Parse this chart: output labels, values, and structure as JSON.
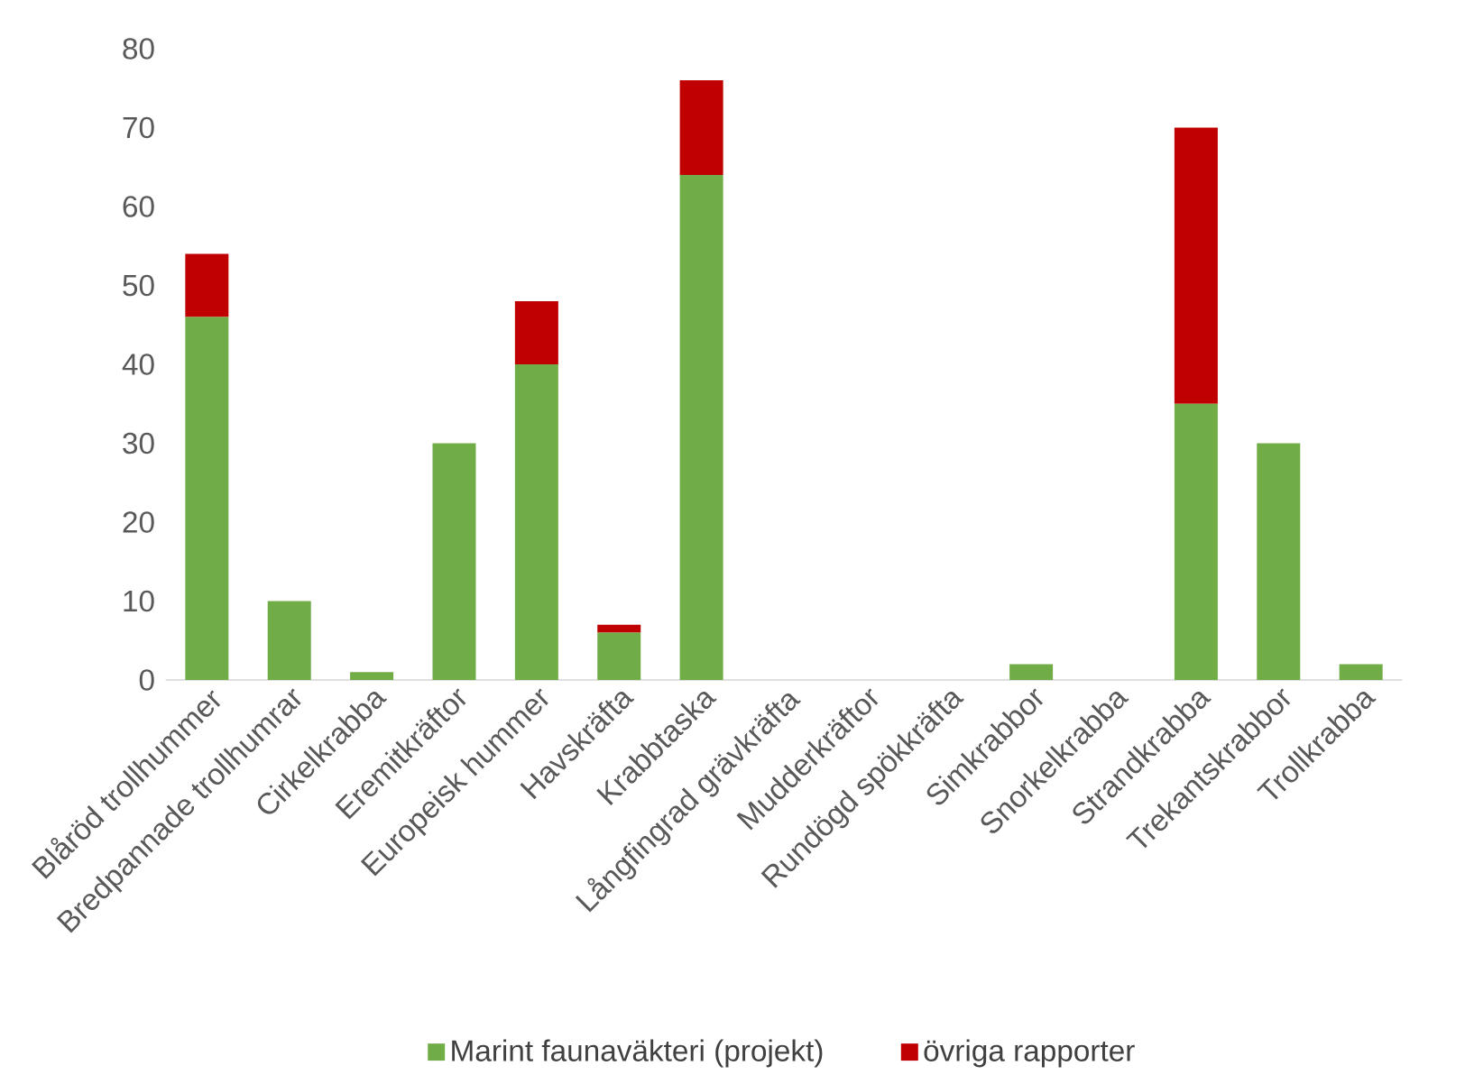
{
  "chart_data": {
    "type": "bar",
    "stacked": true,
    "legend": "bottom",
    "categories": [
      "Blåröd trollhummer",
      "Bredpannade trollhumrar",
      "Cirkelkrabba",
      "Eremitkräftor",
      "Europeisk hummer",
      "Havskräfta",
      "Krabbtaska",
      "Långfingrad grävkräfta",
      "Mudderkräftor",
      "Rundögd spökkräfta",
      "Simkrabbor",
      "Snorkelkrabba",
      "Strandkrabba",
      "Trekantskrabbor",
      "Trollkrabba"
    ],
    "series": [
      {
        "name": "Marint faunaväkteri (projekt)",
        "color": "#70ad47",
        "values": [
          46,
          10,
          1,
          30,
          40,
          6,
          64,
          0,
          0,
          0,
          2,
          0,
          35,
          30,
          2
        ]
      },
      {
        "name": "övriga rapporter",
        "color": "#c00000",
        "values": [
          8,
          0,
          0,
          0,
          8,
          1,
          12,
          0,
          0,
          0,
          0,
          0,
          35,
          0,
          0
        ]
      }
    ],
    "ylim": [
      0,
      80
    ],
    "yticks": [
      0,
      10,
      20,
      30,
      40,
      50,
      60,
      70,
      80
    ]
  }
}
